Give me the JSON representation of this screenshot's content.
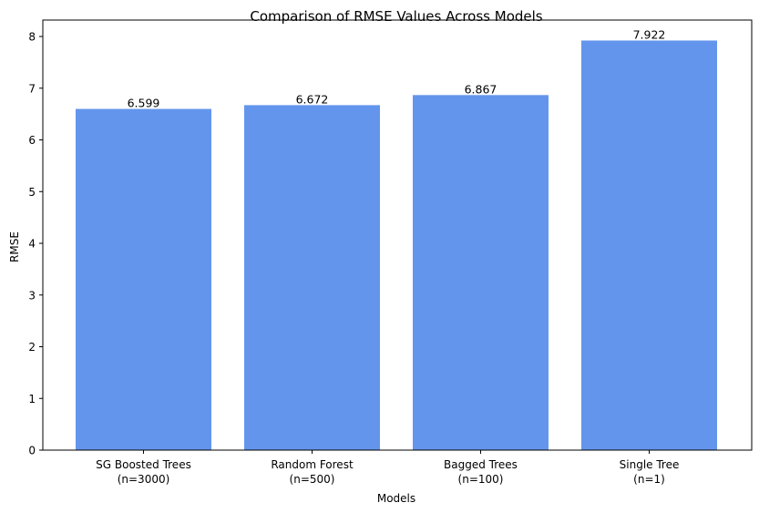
{
  "chart_data": {
    "type": "bar",
    "title": "Comparison of RMSE Values Across Models",
    "xlabel": "Models",
    "ylabel": "RMSE",
    "categories": [
      [
        "SG Boosted Trees",
        "(n=3000)"
      ],
      [
        "Random Forest",
        "(n=500)"
      ],
      [
        "Bagged Trees",
        "(n=100)"
      ],
      [
        "Single Tree",
        "(n=1)"
      ]
    ],
    "values": [
      6.599,
      6.672,
      6.867,
      7.922
    ],
    "data_labels": [
      "6.599",
      "6.672",
      "6.867",
      "7.922"
    ],
    "yticks": [
      "0",
      "1",
      "2",
      "3",
      "4",
      "5",
      "6",
      "7",
      "8"
    ],
    "ylim": [
      0,
      8.318
    ],
    "bar_color": "#6495ED",
    "grid": false,
    "legend": "none"
  }
}
